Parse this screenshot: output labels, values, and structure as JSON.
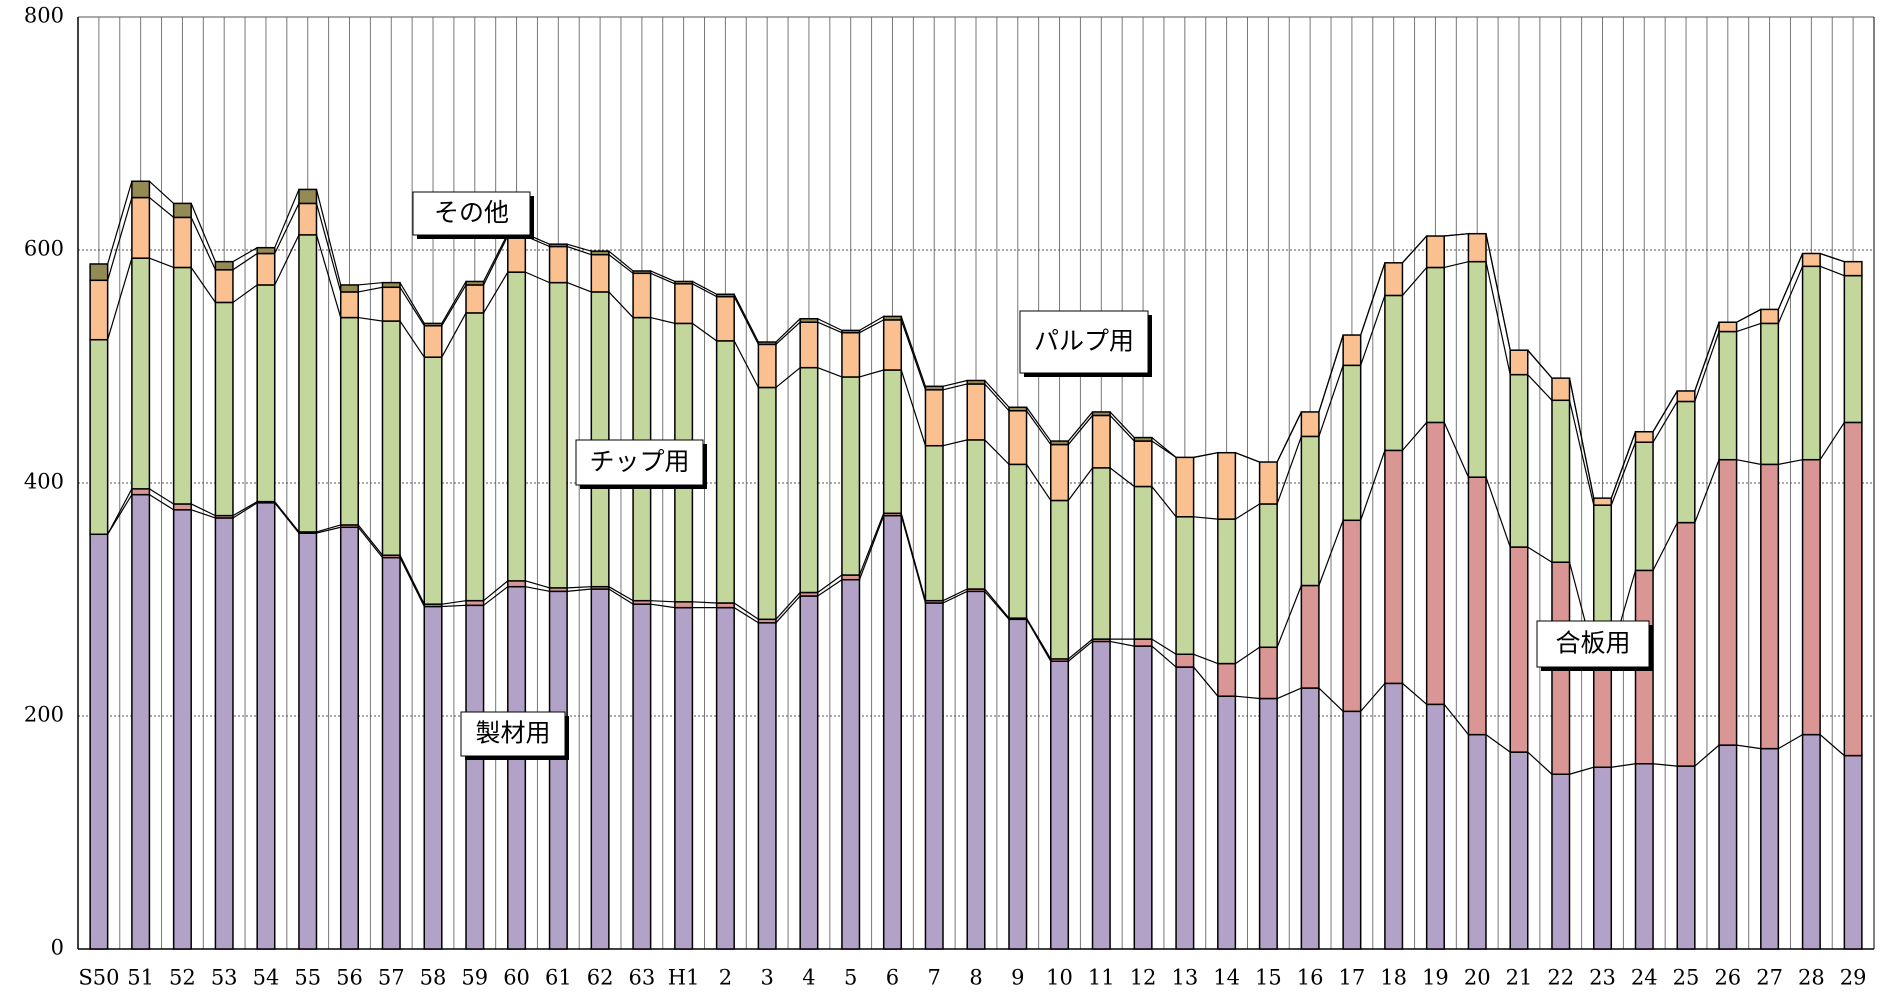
{
  "chart_data": {
    "type": "stacked_bar",
    "categories": [
      "S50",
      "51",
      "52",
      "53",
      "54",
      "55",
      "56",
      "57",
      "58",
      "59",
      "60",
      "61",
      "62",
      "63",
      "H1",
      "2",
      "3",
      "4",
      "5",
      "6",
      "7",
      "8",
      "9",
      "10",
      "11",
      "12",
      "13",
      "14",
      "15",
      "16",
      "17",
      "18",
      "19",
      "20",
      "21",
      "22",
      "23",
      "24",
      "25",
      "26",
      "27",
      "28",
      "29"
    ],
    "series": [
      {
        "name": "製材用",
        "color": "#b3a2c7",
        "values": [
          356,
          390,
          377,
          370,
          383,
          357,
          362,
          336,
          294,
          295,
          311,
          307,
          309,
          296,
          293,
          293,
          280,
          303,
          317,
          372,
          297,
          307,
          283,
          247,
          264,
          260,
          242,
          217,
          215,
          224,
          204,
          228,
          210,
          184,
          169,
          150,
          156,
          159,
          157,
          175,
          172,
          184,
          166
        ]
      },
      {
        "name": "合板用",
        "color": "#d99694",
        "values": [
          0,
          5,
          5,
          2,
          1,
          1,
          2,
          2,
          2,
          4,
          5,
          3,
          2,
          3,
          5,
          4,
          3,
          3,
          4,
          2,
          2,
          2,
          1,
          2,
          2,
          6,
          11,
          28,
          44,
          88,
          164,
          200,
          242,
          221,
          176,
          182,
          97,
          166,
          209,
          245,
          244,
          236,
          286
        ]
      },
      {
        "name": "チップ用",
        "color": "#c3d69b",
        "values": [
          167,
          198,
          203,
          183,
          186,
          255,
          178,
          201,
          212,
          247,
          265,
          262,
          253,
          243,
          239,
          225,
          199,
          193,
          170,
          123,
          133,
          128,
          132,
          136,
          147,
          131,
          118,
          124,
          123,
          128,
          133,
          133,
          133,
          185,
          148,
          139,
          128,
          110,
          104,
          110,
          121,
          166,
          126
        ]
      },
      {
        "name": "パルプ用",
        "color": "#fac090",
        "values": [
          51,
          52,
          43,
          28,
          27,
          27,
          22,
          29,
          27,
          24,
          31,
          31,
          32,
          38,
          34,
          38,
          37,
          39,
          38,
          43,
          48,
          48,
          46,
          48,
          45,
          39,
          51,
          57,
          36,
          21,
          26,
          28,
          27,
          24,
          21,
          19,
          6,
          9,
          9,
          8,
          12,
          11,
          12
        ]
      },
      {
        "name": "その他",
        "color": "#948a54",
        "values": [
          14,
          14,
          12,
          7,
          5,
          12,
          6,
          4,
          2,
          3,
          2,
          2,
          3,
          2,
          2,
          2,
          2,
          3,
          2,
          3,
          3,
          3,
          3,
          3,
          3,
          3,
          0,
          0,
          0,
          0,
          0,
          0,
          0,
          0,
          0,
          0,
          0,
          0,
          0,
          0,
          0,
          0,
          0
        ]
      }
    ],
    "ylim": [
      0,
      800
    ],
    "yticks": [
      0,
      200,
      400,
      600,
      800
    ],
    "grid": true
  }
}
